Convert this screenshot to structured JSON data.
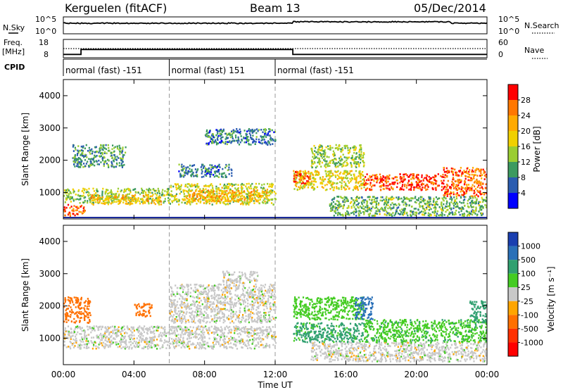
{
  "header": {
    "station": "Kerguelen (fitACF)",
    "beam": "Beam 13",
    "date": "05/Dec/2014"
  },
  "noise_panel": {
    "left_label": "N.Sky",
    "right_label": "N.Search",
    "left_ticks": [
      "10^5",
      "10^0"
    ],
    "right_ticks": [
      "10^5",
      "10^0"
    ]
  },
  "freq_panel": {
    "left_label_1": "Freq.",
    "left_label_2": "[MHz]",
    "right_label": "Nave",
    "left_ticks": [
      "18",
      "8"
    ],
    "right_ticks": [
      "60",
      "0"
    ]
  },
  "cpid": {
    "label": "CPID",
    "segments": [
      {
        "start_hour": 0,
        "text": "normal (fast) -151"
      },
      {
        "start_hour": 6,
        "text": "normal (fast) 151"
      },
      {
        "start_hour": 12,
        "text": "normal (fast) -151"
      }
    ]
  },
  "power_panel": {
    "ylabel": "Slant Range [km]",
    "colorbar_label": "Power [dB]",
    "colorbar_ticks": [
      "28",
      "24",
      "20",
      "16",
      "12",
      "8",
      "4"
    ],
    "colorbar_colors": [
      "#ff0000",
      "#ff7700",
      "#ffaa00",
      "#f0d000",
      "#9acd32",
      "#3c9a60",
      "#2a5cb0",
      "#0000ff"
    ]
  },
  "velocity_panel": {
    "ylabel": "Slant Range [km]",
    "colorbar_label": "Velocity [m s⁻¹]",
    "colorbar_ticks": [
      "1000",
      "500",
      "100",
      "25",
      "-25",
      "-100",
      "-500",
      "-1000"
    ],
    "colorbar_colors": [
      "#1a3fb0",
      "#2a70b8",
      "#30a070",
      "#44cc22",
      "#c8c8c8",
      "#ffa500",
      "#ff7000",
      "#ff3000",
      "#ff0000"
    ]
  },
  "chart_data": {
    "type": "heatmap",
    "title": "Kerguelen (fitACF)  Beam 13  05/Dec/2014",
    "xlabel": "Time UT",
    "ylabel": "Slant Range [km]",
    "x_ticks": [
      "00:00",
      "04:00",
      "08:00",
      "12:00",
      "16:00",
      "20:00",
      "00:00"
    ],
    "xlim_hours": [
      0,
      24
    ],
    "y_ticks": [
      1000,
      2000,
      3000,
      4000
    ],
    "ylim_km": [
      180,
      4500
    ],
    "frequency_mhz": [
      {
        "start_hour": 0,
        "end_hour": 1.0,
        "value": 10
      },
      {
        "start_hour": 1.0,
        "end_hour": 13.0,
        "value": 13
      },
      {
        "start_hour": 13.0,
        "end_hour": 24,
        "value": 10
      }
    ],
    "nave_level": 30,
    "power_regions": [
      {
        "t0": 0.0,
        "t1": 1.2,
        "r0": 300,
        "r1": 650,
        "db": 26
      },
      {
        "t0": 0.0,
        "t1": 6.0,
        "r0": 700,
        "r1": 1150,
        "db": 14
      },
      {
        "t0": 1.5,
        "t1": 5.5,
        "r0": 650,
        "r1": 950,
        "db": 20
      },
      {
        "t0": 0.5,
        "t1": 3.5,
        "r0": 1800,
        "r1": 2500,
        "db": 10
      },
      {
        "t0": 6.0,
        "t1": 12.0,
        "r0": 650,
        "r1": 1300,
        "db": 16
      },
      {
        "t0": 7.0,
        "t1": 11.5,
        "r0": 750,
        "r1": 1100,
        "db": 22
      },
      {
        "t0": 6.5,
        "t1": 9.5,
        "r0": 1500,
        "r1": 1900,
        "db": 8
      },
      {
        "t0": 8.0,
        "t1": 12.0,
        "r0": 2500,
        "r1": 3000,
        "db": 8
      },
      {
        "t0": 13.0,
        "t1": 17.0,
        "r0": 1100,
        "r1": 1700,
        "db": 18
      },
      {
        "t0": 13.0,
        "t1": 14.0,
        "r0": 1300,
        "r1": 1700,
        "db": 28
      },
      {
        "t0": 14.0,
        "t1": 17.0,
        "r0": 1800,
        "r1": 2500,
        "db": 14
      },
      {
        "t0": 17.0,
        "t1": 21.5,
        "r0": 1100,
        "r1": 1600,
        "db": 28
      },
      {
        "t0": 21.5,
        "t1": 24.0,
        "r0": 900,
        "r1": 1800,
        "db": 26
      },
      {
        "t0": 15.0,
        "t1": 24.0,
        "r0": 300,
        "r1": 900,
        "db": 12
      }
    ],
    "velocity_regions": [
      {
        "t0": 0.0,
        "t1": 1.5,
        "r0": 1500,
        "r1": 2300,
        "v": -300
      },
      {
        "t0": 0.0,
        "t1": 12.0,
        "r0": 700,
        "r1": 1400,
        "v": 0
      },
      {
        "t0": 4.0,
        "t1": 5.0,
        "r0": 1700,
        "r1": 2100,
        "v": -300
      },
      {
        "t0": 6.0,
        "t1": 12.0,
        "r0": 1500,
        "r1": 2700,
        "v": 0
      },
      {
        "t0": 13.0,
        "t1": 17.0,
        "r0": 900,
        "r1": 1500,
        "v": 120
      },
      {
        "t0": 13.0,
        "t1": 17.0,
        "r0": 1600,
        "r1": 2300,
        "v": 60
      },
      {
        "t0": 17.0,
        "t1": 24.0,
        "r0": 900,
        "r1": 1600,
        "v": 80
      },
      {
        "t0": 16.5,
        "t1": 17.5,
        "r0": 1600,
        "r1": 2300,
        "v": 700
      },
      {
        "t0": 23.0,
        "t1": 24.0,
        "r0": 1500,
        "r1": 2200,
        "v": 300
      },
      {
        "t0": 14.0,
        "t1": 24.0,
        "r0": 300,
        "r1": 900,
        "v": 0
      },
      {
        "t0": 9.0,
        "t1": 11.0,
        "r0": 2700,
        "r1": 3100,
        "v": 0
      }
    ]
  }
}
